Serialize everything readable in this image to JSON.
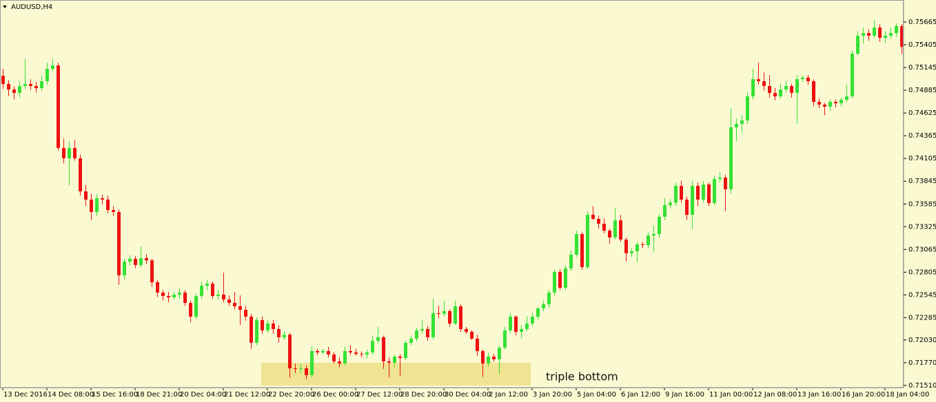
{
  "chart_data": {
    "type": "candlestick",
    "title": "AUDUSD,H4",
    "annotation": "triple bottom",
    "up_color": "#34e234",
    "down_color": "#ee1111",
    "highlight_color": "#f0e392",
    "background": "#fbf9d2",
    "grid": false,
    "ylim": [
      0.71486,
      0.75901
    ],
    "yticks": [
      0.75665,
      0.75405,
      0.75145,
      0.74885,
      0.74625,
      0.74365,
      0.74105,
      0.73845,
      0.73585,
      0.73325,
      0.73065,
      0.72805,
      0.72545,
      0.72285,
      {
        "value": 0.7203,
        "label": "0.72030"
      },
      {
        "value": 0.7177,
        "label": "0.71770"
      },
      {
        "value": 0.7151,
        "label": "0.71510"
      }
    ],
    "categories": [
      "13 Dec 2016",
      null,
      null,
      null,
      null,
      null,
      null,
      null,
      "14 Dec 08:00",
      null,
      null,
      null,
      null,
      null,
      null,
      null,
      "15 Dec 16:00",
      null,
      null,
      null,
      null,
      null,
      null,
      null,
      "18 Dec 21:00",
      null,
      null,
      null,
      null,
      null,
      null,
      null,
      "20 Dec 04:00",
      null,
      null,
      null,
      null,
      null,
      null,
      null,
      "21 Dec 12:00",
      null,
      null,
      null,
      null,
      null,
      null,
      null,
      "22 Dec 20:00",
      null,
      null,
      null,
      null,
      null,
      null,
      null,
      "26 Dec 00:00",
      null,
      null,
      null,
      null,
      null,
      null,
      null,
      "27 Dec 12:00",
      null,
      null,
      null,
      null,
      null,
      null,
      null,
      "28 Dec 20:00",
      null,
      null,
      null,
      null,
      null,
      null,
      null,
      "30 Dec 04:00",
      null,
      null,
      null,
      null,
      null,
      null,
      null,
      "2 Jan 12:00",
      null,
      null,
      null,
      null,
      null,
      null,
      null,
      "3 Jan 20:00",
      null,
      null,
      null,
      null,
      null,
      null,
      null,
      "5 Jan 04:00",
      null,
      null,
      null,
      null,
      null,
      null,
      null,
      "6 Jan 12:00",
      null,
      null,
      null,
      null,
      null,
      null,
      null,
      "9 Jan 16:00",
      null,
      null,
      null,
      null,
      null,
      null,
      null,
      "11 Jan 00:00",
      null,
      null,
      null,
      null,
      null,
      null,
      null,
      "12 Jan 08:00",
      null,
      null,
      null,
      null,
      null,
      null,
      null,
      "13 Jan 16:00",
      null,
      null,
      null,
      null,
      null,
      null,
      null,
      "16 Jan 20:00",
      null,
      null,
      null,
      null,
      null,
      null,
      null,
      "18 Jan 04:00",
      null,
      null,
      null
    ],
    "ohlc": [
      [
        0.7505,
        0.7513,
        0.749,
        0.74957
      ],
      [
        0.74957,
        0.75,
        0.7482,
        0.74894
      ],
      [
        0.74894,
        0.7493,
        0.7478,
        0.74854
      ],
      [
        0.74854,
        0.7499,
        0.748,
        0.74933
      ],
      [
        0.74933,
        0.7524,
        0.749,
        0.74957
      ],
      [
        0.74957,
        0.7501,
        0.7489,
        0.74933
      ],
      [
        0.74933,
        0.7498,
        0.7486,
        0.74909
      ],
      [
        0.74909,
        0.7505,
        0.7488,
        0.74988
      ],
      [
        0.74988,
        0.752,
        0.7495,
        0.7513
      ],
      [
        0.7513,
        0.7524,
        0.751,
        0.75169
      ],
      [
        0.75169,
        0.752,
        0.742,
        0.74225
      ],
      [
        0.74225,
        0.7433,
        0.7405,
        0.74107
      ],
      [
        0.74107,
        0.743,
        0.738,
        0.74225
      ],
      [
        0.74225,
        0.7432,
        0.7408,
        0.74107
      ],
      [
        0.74107,
        0.7415,
        0.7368,
        0.73729
      ],
      [
        0.73729,
        0.738,
        0.7356,
        0.73635
      ],
      [
        0.73635,
        0.737,
        0.734,
        0.73493
      ],
      [
        0.73493,
        0.737,
        0.7345,
        0.7365
      ],
      [
        0.7365,
        0.7369,
        0.7358,
        0.73635
      ],
      [
        0.73635,
        0.7368,
        0.7348,
        0.73516
      ],
      [
        0.73516,
        0.7356,
        0.7345,
        0.73493
      ],
      [
        0.73493,
        0.7352,
        0.7266,
        0.72769
      ],
      [
        0.72769,
        0.7296,
        0.7272,
        0.72926
      ],
      [
        0.72926,
        0.73,
        0.7288,
        0.72958
      ],
      [
        0.72958,
        0.7299,
        0.7285,
        0.72887
      ],
      [
        0.72887,
        0.731,
        0.7286,
        0.72966
      ],
      [
        0.72966,
        0.7301,
        0.729,
        0.7294
      ],
      [
        0.7294,
        0.7296,
        0.7264,
        0.7269
      ],
      [
        0.7269,
        0.7272,
        0.7252,
        0.72572
      ],
      [
        0.72572,
        0.726,
        0.7248,
        0.72533
      ],
      [
        0.72533,
        0.7258,
        0.7246,
        0.72517
      ],
      [
        0.72517,
        0.7258,
        0.7249,
        0.72548
      ],
      [
        0.72548,
        0.7262,
        0.725,
        0.72572
      ],
      [
        0.72572,
        0.726,
        0.7242,
        0.72454
      ],
      [
        0.72454,
        0.7248,
        0.7223,
        0.72297
      ],
      [
        0.72297,
        0.7256,
        0.7227,
        0.72533
      ],
      [
        0.72533,
        0.727,
        0.725,
        0.72651
      ],
      [
        0.72651,
        0.7272,
        0.726,
        0.72674
      ],
      [
        0.72674,
        0.727,
        0.725,
        0.72533
      ],
      [
        0.72533,
        0.726,
        0.7249,
        0.72548
      ],
      [
        0.72548,
        0.728,
        0.7246,
        0.72493
      ],
      [
        0.72493,
        0.7254,
        0.7242,
        0.72454
      ],
      [
        0.72454,
        0.7258,
        0.7238,
        0.72415
      ],
      [
        0.72415,
        0.7254,
        0.722,
        0.72375
      ],
      [
        0.72375,
        0.7242,
        0.7225,
        0.72297
      ],
      [
        0.72297,
        0.7233,
        0.7193,
        0.71998
      ],
      [
        0.71998,
        0.7229,
        0.7197,
        0.72257
      ],
      [
        0.72257,
        0.723,
        0.721,
        0.72139
      ],
      [
        0.72139,
        0.7226,
        0.7211,
        0.72218
      ],
      [
        0.72218,
        0.7226,
        0.721,
        0.72155
      ],
      [
        0.72155,
        0.722,
        0.72,
        0.72061
      ],
      [
        0.72061,
        0.7213,
        0.7203,
        0.7209
      ],
      [
        0.7209,
        0.7211,
        0.716,
        0.71706
      ],
      [
        0.71706,
        0.7176,
        0.7165,
        0.71699
      ],
      [
        0.71699,
        0.7176,
        0.7165,
        0.71706
      ],
      [
        0.71706,
        0.7174,
        0.7158,
        0.71628
      ],
      [
        0.71628,
        0.7196,
        0.716,
        0.71903
      ],
      [
        0.71903,
        0.7193,
        0.7186,
        0.71887
      ],
      [
        0.71887,
        0.7193,
        0.7187,
        0.71903
      ],
      [
        0.71903,
        0.7195,
        0.7183,
        0.71864
      ],
      [
        0.71864,
        0.7189,
        0.7176,
        0.71785
      ],
      [
        0.71785,
        0.7183,
        0.7172,
        0.71761
      ],
      [
        0.71761,
        0.7195,
        0.7174,
        0.71903
      ],
      [
        0.71903,
        0.7197,
        0.7186,
        0.71887
      ],
      [
        0.71887,
        0.7193,
        0.7185,
        0.7187
      ],
      [
        0.7187,
        0.719,
        0.7183,
        0.71864
      ],
      [
        0.71864,
        0.7192,
        0.7182,
        0.71887
      ],
      [
        0.71887,
        0.7208,
        0.7186,
        0.72021
      ],
      [
        0.72021,
        0.7218,
        0.7199,
        0.72061
      ],
      [
        0.72061,
        0.7208,
        0.717,
        0.71785
      ],
      [
        0.71785,
        0.7183,
        0.716,
        0.7177
      ],
      [
        0.7177,
        0.7186,
        0.7172,
        0.7184
      ],
      [
        0.7184,
        0.7187,
        0.7162,
        0.71824
      ],
      [
        0.71824,
        0.7202,
        0.718,
        0.71998
      ],
      [
        0.71998,
        0.7208,
        0.7197,
        0.72045
      ],
      [
        0.72045,
        0.7217,
        0.7201,
        0.72139
      ],
      [
        0.72139,
        0.7226,
        0.721,
        0.72155
      ],
      [
        0.72155,
        0.7219,
        0.7202,
        0.72061
      ],
      [
        0.72061,
        0.725,
        0.7204,
        0.72336
      ],
      [
        0.72336,
        0.7242,
        0.7228,
        0.7233
      ],
      [
        0.7233,
        0.7248,
        0.723,
        0.7236
      ],
      [
        0.7236,
        0.7238,
        0.7218,
        0.72218
      ],
      [
        0.72218,
        0.7248,
        0.722,
        0.72415
      ],
      [
        0.72415,
        0.7244,
        0.7212,
        0.72155
      ],
      [
        0.72155,
        0.7218,
        0.721,
        0.72123
      ],
      [
        0.72123,
        0.7214,
        0.7203,
        0.72045
      ],
      [
        0.72045,
        0.7209,
        0.7185,
        0.71903
      ],
      [
        0.71903,
        0.7192,
        0.7161,
        0.71761
      ],
      [
        0.71761,
        0.7188,
        0.7172,
        0.7184
      ],
      [
        0.7184,
        0.7187,
        0.7178,
        0.71809
      ],
      [
        0.71809,
        0.7196,
        0.7164,
        0.71942
      ],
      [
        0.71942,
        0.7218,
        0.7192,
        0.72139
      ],
      [
        0.72139,
        0.7234,
        0.7211,
        0.72297
      ],
      [
        0.72297,
        0.7231,
        0.7208,
        0.72123
      ],
      [
        0.72123,
        0.722,
        0.7205,
        0.72155
      ],
      [
        0.72155,
        0.723,
        0.7213,
        0.72218
      ],
      [
        0.72218,
        0.7234,
        0.7219,
        0.72297
      ],
      [
        0.72297,
        0.7241,
        0.7226,
        0.72391
      ],
      [
        0.72391,
        0.7248,
        0.7236,
        0.72438
      ],
      [
        0.72438,
        0.726,
        0.724,
        0.72572
      ],
      [
        0.72572,
        0.7283,
        0.7254,
        0.72808
      ],
      [
        0.72808,
        0.7284,
        0.726,
        0.72627
      ],
      [
        0.72627,
        0.7288,
        0.726,
        0.72848
      ],
      [
        0.72848,
        0.7305,
        0.7282,
        0.73005
      ],
      [
        0.73005,
        0.7328,
        0.7298,
        0.73241
      ],
      [
        0.73241,
        0.7326,
        0.7283,
        0.72863
      ],
      [
        0.72863,
        0.735,
        0.7284,
        0.73461
      ],
      [
        0.73461,
        0.7356,
        0.734,
        0.73414
      ],
      [
        0.73414,
        0.7345,
        0.733,
        0.73359
      ],
      [
        0.73359,
        0.7342,
        0.7325,
        0.7328
      ],
      [
        0.7328,
        0.733,
        0.7313,
        0.73202
      ],
      [
        0.73202,
        0.7354,
        0.7318,
        0.73398
      ],
      [
        0.73398,
        0.7346,
        0.7315,
        0.73178
      ],
      [
        0.73178,
        0.732,
        0.7293,
        0.73021
      ],
      [
        0.73021,
        0.7308,
        0.7298,
        0.73044
      ],
      [
        0.73044,
        0.7315,
        0.7292,
        0.73123
      ],
      [
        0.73123,
        0.7315,
        0.7308,
        0.73115
      ],
      [
        0.73115,
        0.7326,
        0.7308,
        0.73225
      ],
      [
        0.73225,
        0.7334,
        0.7303,
        0.73241
      ],
      [
        0.73241,
        0.7347,
        0.732,
        0.73438
      ],
      [
        0.73438,
        0.7365,
        0.734,
        0.73572
      ],
      [
        0.73572,
        0.7364,
        0.7353,
        0.736
      ],
      [
        0.736,
        0.7383,
        0.7356,
        0.73792
      ],
      [
        0.73792,
        0.7385,
        0.736,
        0.73635
      ],
      [
        0.73635,
        0.7367,
        0.734,
        0.73461
      ],
      [
        0.73461,
        0.7385,
        0.733,
        0.73792
      ],
      [
        0.73792,
        0.7383,
        0.7356,
        0.73635
      ],
      [
        0.73635,
        0.7385,
        0.736,
        0.73808
      ],
      [
        0.73808,
        0.7383,
        0.7356,
        0.73595
      ],
      [
        0.73595,
        0.7391,
        0.7357,
        0.73871
      ],
      [
        0.73871,
        0.7395,
        0.7383,
        0.73886
      ],
      [
        0.73886,
        0.7392,
        0.735,
        0.73753
      ],
      [
        0.73753,
        0.7468,
        0.737,
        0.74461
      ],
      [
        0.74461,
        0.7456,
        0.743,
        0.745
      ],
      [
        0.745,
        0.746,
        0.744,
        0.7454
      ],
      [
        0.7454,
        0.7486,
        0.745,
        0.74815
      ],
      [
        0.74815,
        0.7513,
        0.7478,
        0.75012
      ],
      [
        0.75012,
        0.752,
        0.7495,
        0.74988
      ],
      [
        0.74988,
        0.7509,
        0.7488,
        0.74933
      ],
      [
        0.74933,
        0.7506,
        0.748,
        0.74854
      ],
      [
        0.74854,
        0.7491,
        0.7477,
        0.74815
      ],
      [
        0.74815,
        0.7496,
        0.7479,
        0.74894
      ],
      [
        0.74894,
        0.7499,
        0.7486,
        0.74933
      ],
      [
        0.74933,
        0.7496,
        0.748,
        0.74854
      ],
      [
        0.74854,
        0.7506,
        0.745,
        0.75012
      ],
      [
        0.75012,
        0.7505,
        0.7498,
        0.7503
      ],
      [
        0.7503,
        0.7506,
        0.7495,
        0.74988
      ],
      [
        0.74988,
        0.7501,
        0.747,
        0.74752
      ],
      [
        0.74752,
        0.7479,
        0.7468,
        0.74721
      ],
      [
        0.74721,
        0.7474,
        0.746,
        0.74697
      ],
      [
        0.74697,
        0.7478,
        0.7465,
        0.74752
      ],
      [
        0.74752,
        0.7478,
        0.7469,
        0.74736
      ],
      [
        0.74736,
        0.748,
        0.747,
        0.74776
      ],
      [
        0.74776,
        0.7495,
        0.7475,
        0.74815
      ],
      [
        0.74815,
        0.7534,
        0.7479,
        0.75303
      ],
      [
        0.75303,
        0.7556,
        0.7528,
        0.75508
      ],
      [
        0.75508,
        0.756,
        0.7542,
        0.75539
      ],
      [
        0.75539,
        0.7558,
        0.7545,
        0.75508
      ],
      [
        0.75508,
        0.7569,
        0.7548,
        0.75602
      ],
      [
        0.75602,
        0.7564,
        0.7544,
        0.75484
      ],
      [
        0.75484,
        0.7556,
        0.7542,
        0.75508
      ],
      [
        0.75508,
        0.756,
        0.7547,
        0.75539
      ],
      [
        0.75539,
        0.7565,
        0.755,
        0.75618
      ],
      [
        0.75618,
        0.7564,
        0.753,
        0.75382
      ]
    ]
  }
}
